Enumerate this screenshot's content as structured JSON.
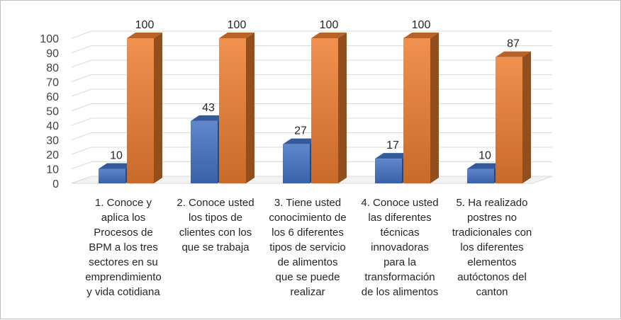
{
  "chart_data": {
    "type": "bar",
    "categories": [
      "1. Conoce y aplica los Procesos de BPM a los tres sectores en su emprendimiento y vida cotidiana",
      "2. Conoce usted los tipos de clientes con los que se trabaja",
      "3. Tiene usted conocimiento de los 6 diferentes tipos de servicio de alimentos que se puede realizar",
      "4. Conoce usted las diferentes técnicas innovadoras para la transformación de los alimentos",
      "5. Ha realizado postres no tradicionales con los diferentes elementos autóctonos del canton"
    ],
    "category_lines": [
      [
        "1. Conoce y",
        "aplica los",
        "Procesos de",
        "BPM a los tres",
        "sectores en su",
        "emprendimiento",
        "y vida cotidiana"
      ],
      [
        "2. Conoce usted",
        "los tipos de",
        "clientes con los",
        "que se trabaja"
      ],
      [
        "3. Tiene usted",
        "conocimiento de",
        "los 6 diferentes",
        "tipos de servicio",
        "de alimentos",
        "que se puede",
        "realizar"
      ],
      [
        "4. Conoce usted",
        "las diferentes",
        "técnicas",
        "innovadoras",
        "para la",
        "transformación",
        "de los alimentos"
      ],
      [
        "5. Ha realizado",
        "postres no",
        "tradicionales con",
        "los diferentes",
        "elementos",
        "autóctonos del",
        "canton"
      ]
    ],
    "series": [
      {
        "values": [
          10,
          43,
          27,
          17,
          10
        ],
        "color": "#4472C4"
      },
      {
        "values": [
          100,
          100,
          100,
          100,
          87
        ],
        "color": "#ED7D31"
      }
    ],
    "ylim": [
      0,
      100
    ],
    "yticks": [
      "0",
      "10",
      "20",
      "30",
      "40",
      "50",
      "60",
      "70",
      "80",
      "90",
      "100"
    ],
    "data_labels": [
      [
        "10",
        "43",
        "27",
        "17",
        "10"
      ],
      [
        "100",
        "100",
        "100",
        "100",
        "87"
      ]
    ],
    "grid": true,
    "legend": "none",
    "style": "3d-clustered-column"
  }
}
